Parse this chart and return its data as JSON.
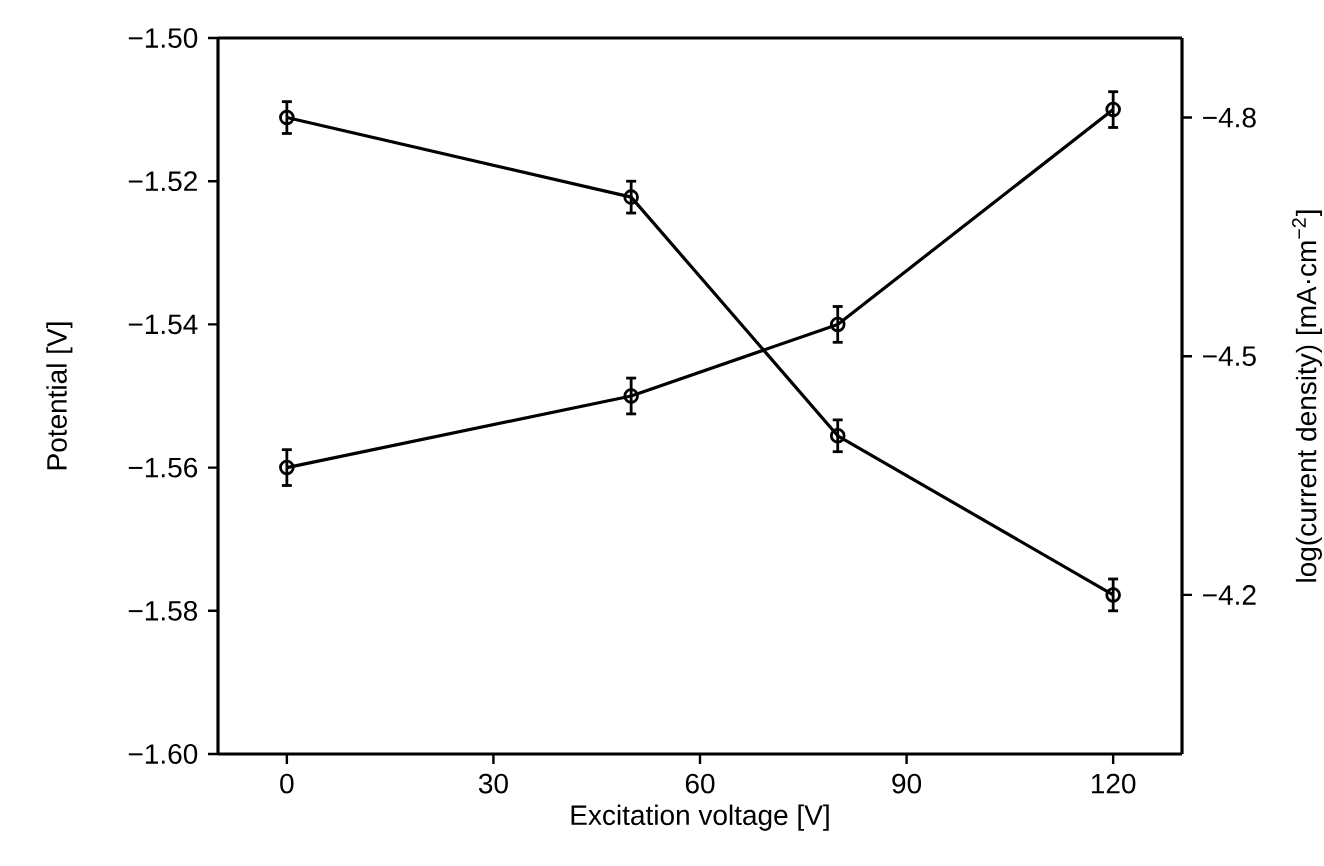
{
  "chart_data": {
    "type": "line",
    "xlabel": "Excitation voltage [V]",
    "ylabel": "Potential [V]",
    "y2label": "log(current density) [mA·cm$^{−2}$]",
    "x": [
      0,
      50,
      80,
      120
    ],
    "series": [
      {
        "color": "#000000",
        "values": [
          -1.56,
          -1.55,
          -1.54,
          -1.51
        ],
        "errors": [
          0.0025,
          0.0025,
          0.0025,
          0.0025
        ]
      },
      {
        "color": "#000000",
        "axis": "y2",
        "values": [
          -4.8,
          -4.7,
          -4.4,
          -4.2
        ],
        "errors": [
          0.02,
          0.02,
          0.02,
          0.02
        ]
      }
    ],
    "xlim": [
      -10,
      130
    ],
    "xticks": [
      0,
      30,
      60,
      90,
      120
    ],
    "ylim": [
      -1.6,
      -1.5
    ],
    "yticks": [
      {
        "value": -1.6,
        "label": "−1.60"
      },
      {
        "value": -1.58,
        "label": "−1.58"
      },
      {
        "value": -1.56,
        "label": "−1.56"
      },
      {
        "value": -1.54,
        "label": "−1.54"
      },
      {
        "value": -1.52,
        "label": "−1.52"
      },
      {
        "value": -1.5,
        "label": "−1.50"
      }
    ],
    "y2lim": [
      -4.0,
      -4.9
    ],
    "y2ticks": [
      {
        "value": -4.8,
        "label": "−4.8"
      },
      {
        "value": -4.5,
        "label": "−4.5"
      },
      {
        "value": -4.2,
        "label": "−4.2"
      }
    ],
    "grid": false,
    "marker": "circle",
    "line_style": "solid"
  }
}
